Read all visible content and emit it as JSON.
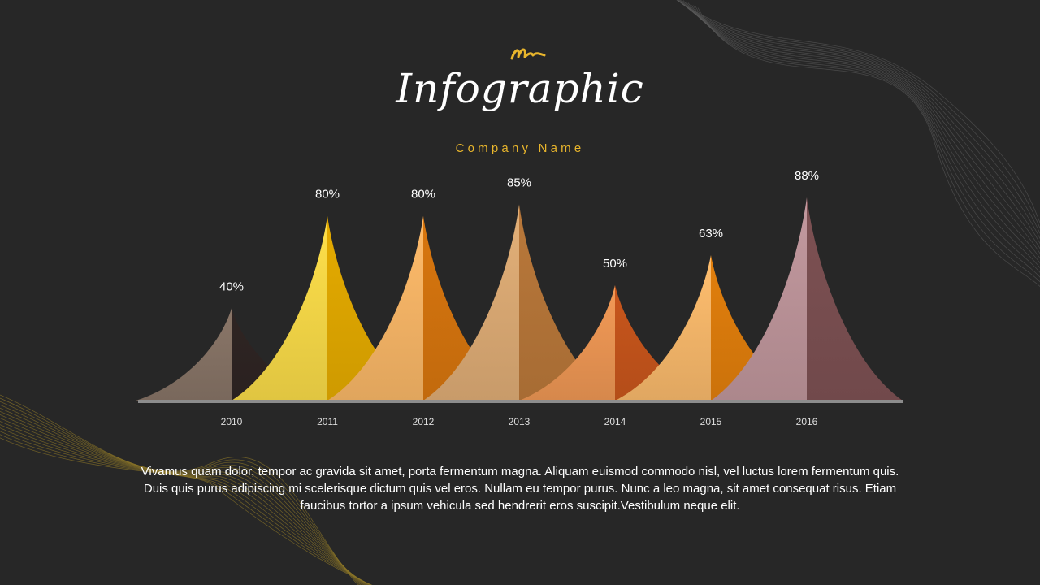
{
  "header": {
    "title": "Infographic",
    "subtitle": "Company Name",
    "accent_color": "#e8b52c"
  },
  "chart_data": {
    "type": "area",
    "categories": [
      "2010",
      "2011",
      "2012",
      "2013",
      "2014",
      "2015",
      "2016"
    ],
    "values": [
      40,
      80,
      80,
      85,
      50,
      63,
      88
    ],
    "value_labels": [
      "40%",
      "80%",
      "80%",
      "85%",
      "50%",
      "63%",
      "88%"
    ],
    "unit": "%",
    "ylim": [
      0,
      88
    ],
    "grid": false,
    "legend": "none",
    "colors": [
      {
        "light": "#8a7668",
        "dark": "#2f2523"
      },
      {
        "light": "#ffe04a",
        "dark": "#e5ab00"
      },
      {
        "light": "#ffbb6a",
        "dark": "#d8760e"
      },
      {
        "light": "#e3b078",
        "dark": "#b9783a"
      },
      {
        "light": "#f39a56",
        "dark": "#c8561c"
      },
      {
        "light": "#ffbe6e",
        "dark": "#e27f0c"
      },
      {
        "light": "#c3999f",
        "dark": "#7d5153"
      }
    ]
  },
  "description": "Vivamus quam dolor, tempor ac gravida sit amet, porta fermentum magna. Aliquam euismod commodo nisl, vel luctus lorem fermentum quis. Duis quis purus adipiscing mi scelerisque dictum quis vel eros. Nullam eu tempor purus. Nunc a leo magna, sit amet consequat risus. Etiam faucibus tortor a ipsum vehicula sed hendrerit eros suscipit.Vestibulum neque elit."
}
